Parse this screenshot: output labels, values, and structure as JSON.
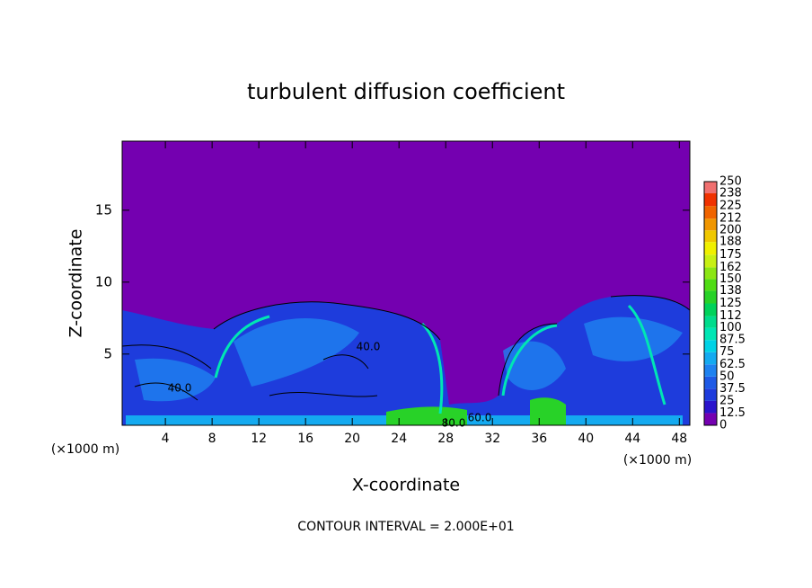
{
  "chart_data": {
    "type": "contour",
    "title": "turbulent diffusion coefficient",
    "xlabel": "X-coordinate",
    "ylabel": "Z-coordinate",
    "x_unit_left": "(×1000 m)",
    "x_unit_right": "(×1000 m)",
    "footer": "CONTOUR INTERVAL = 2.000E+01",
    "xlim": [
      0.3,
      48.9
    ],
    "xticks": [
      4,
      8,
      12,
      16,
      20,
      24,
      28,
      32,
      36,
      40,
      44,
      48
    ],
    "ylim": [
      0.05,
      19.8
    ],
    "yticks": [
      5,
      10,
      15
    ],
    "contour_labels": [
      "40.0",
      "40.0",
      "80.0",
      "60.0"
    ],
    "colorbar": {
      "levels": [
        0,
        12.5,
        25,
        37.5,
        50,
        62.5,
        75,
        87.5,
        100,
        112,
        125,
        138,
        150,
        162,
        175,
        188,
        200,
        212,
        225,
        238,
        250
      ],
      "colors": [
        "#7400b0",
        "#2a14cc",
        "#1e3cdc",
        "#1e5ae6",
        "#1e82f0",
        "#14aaf0",
        "#00d2e6",
        "#00e6b4",
        "#00dc8c",
        "#00d25a",
        "#28d228",
        "#50dc14",
        "#8ce614",
        "#c8f014",
        "#f0f000",
        "#f0c800",
        "#f09600",
        "#f06400",
        "#f03200",
        "#f07070"
      ]
    }
  }
}
